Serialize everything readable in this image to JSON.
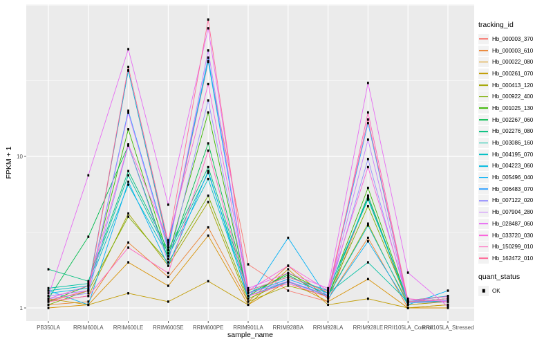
{
  "figure": {
    "panel_background": "#EBEBEB",
    "grid_color": "#FFFFFF",
    "axis_text_color": "#4D4D4D",
    "tick_color": "#333333",
    "point_color": "#000000",
    "legend_key_bg": "#F2F2F2"
  },
  "chart_data": {
    "type": "line",
    "title": "",
    "xlabel": "sample_name",
    "ylabel": "FPKM + 1",
    "y_scale": "log10",
    "ylim": [
      0.9,
      95
    ],
    "grid": "on",
    "legend_position": "right",
    "y_tick_labels": [
      {
        "value": 1,
        "label": "1"
      },
      {
        "value": 10,
        "label": "10"
      }
    ],
    "y_grid_major": [
      1,
      10,
      100
    ],
    "y_grid_minor": [
      3.1623,
      31.623
    ],
    "categories": [
      "PB350LA",
      "RRIM600LA",
      "RRIM600LE",
      "RRIM600SE",
      "RRIM600PE",
      "RRIM901LA",
      "RRIM928BA",
      "RRIM928LA",
      "RRIM928LE",
      "RRII105LA_Control",
      "RRII105LA_Stressed"
    ],
    "series": [
      {
        "name": "Hb_000003_370",
        "color": "#F8766D",
        "values": [
          1.1,
          1.3,
          37.0,
          2.5,
          42.0,
          1.94,
          1.3,
          1.1,
          5.5,
          1.05,
          1.1
        ]
      },
      {
        "name": "Hb_000003_610",
        "color": "#EA8331",
        "values": [
          1.05,
          1.1,
          2.7,
          1.6,
          3.4,
          1.1,
          1.9,
          1.15,
          2.9,
          1.0,
          1.05
        ]
      },
      {
        "name": "Hb_000022_080",
        "color": "#D89000",
        "values": [
          1.0,
          1.05,
          2.0,
          1.4,
          3.0,
          1.05,
          1.5,
          1.1,
          1.55,
          1.0,
          1.0
        ]
      },
      {
        "name": "Hb_000261_070",
        "color": "#C09B00",
        "values": [
          1.15,
          1.05,
          1.25,
          1.1,
          1.5,
          1.05,
          1.8,
          1.05,
          1.15,
          1.0,
          1.05
        ]
      },
      {
        "name": "Hb_000413_120",
        "color": "#A3A500",
        "values": [
          1.1,
          1.2,
          4.2,
          1.9,
          5.0,
          1.1,
          1.4,
          1.2,
          3.6,
          1.05,
          1.1
        ]
      },
      {
        "name": "Hb_000922_400",
        "color": "#7CAE00",
        "values": [
          1.05,
          1.3,
          4.0,
          2.0,
          5.5,
          1.15,
          1.5,
          1.2,
          4.7,
          1.1,
          1.1
        ]
      },
      {
        "name": "Hb_001025_130",
        "color": "#39B600",
        "values": [
          1.1,
          1.4,
          15.1,
          2.2,
          19.5,
          1.2,
          1.7,
          1.25,
          6.2,
          1.1,
          1.15
        ]
      },
      {
        "name": "Hb_002267_060",
        "color": "#00BB4E",
        "values": [
          1.15,
          2.95,
          11.8,
          2.1,
          12.2,
          1.25,
          1.65,
          1.2,
          5.5,
          1.1,
          1.1
        ]
      },
      {
        "name": "Hb_002276_080",
        "color": "#00BF7D",
        "values": [
          1.8,
          1.5,
          8.0,
          2.4,
          8.5,
          1.3,
          1.6,
          1.3,
          5.2,
          1.12,
          1.2
        ]
      },
      {
        "name": "Hb_003086_160",
        "color": "#00C1A3",
        "values": [
          1.35,
          1.45,
          7.5,
          2.3,
          7.8,
          1.25,
          1.55,
          1.25,
          2.0,
          1.1,
          1.15
        ]
      },
      {
        "name": "Hb_004195_070",
        "color": "#00BFC4",
        "values": [
          1.3,
          1.4,
          6.5,
          2.2,
          7.1,
          1.2,
          1.5,
          1.2,
          3.5,
          1.08,
          1.12
        ]
      },
      {
        "name": "Hb_004223_060",
        "color": "#00BAE0",
        "values": [
          1.25,
          1.35,
          36.8,
          2.6,
          42.6,
          1.3,
          1.6,
          1.3,
          5.3,
          1.1,
          1.15
        ]
      },
      {
        "name": "Hb_005496_040",
        "color": "#00B0F6",
        "values": [
          1.3,
          1.05,
          6.8,
          1.9,
          8.0,
          1.15,
          2.9,
          1.15,
          2.75,
          1.05,
          1.3
        ]
      },
      {
        "name": "Hb_006483_070",
        "color": "#35A2FF",
        "values": [
          1.2,
          1.3,
          20.0,
          2.5,
          44.9,
          1.25,
          1.55,
          1.25,
          16.6,
          1.1,
          1.2
        ]
      },
      {
        "name": "Hb_007122_020",
        "color": "#9590FF",
        "values": [
          1.15,
          1.25,
          11.8,
          2.0,
          23.4,
          1.2,
          1.48,
          1.2,
          9.6,
          1.08,
          1.1
        ]
      },
      {
        "name": "Hb_007904_280",
        "color": "#C77CFF",
        "values": [
          1.2,
          1.3,
          19.4,
          2.4,
          50.0,
          1.25,
          1.5,
          1.22,
          12.9,
          1.1,
          1.12
        ]
      },
      {
        "name": "Hb_028487_060",
        "color": "#E76BF3",
        "values": [
          1.2,
          7.5,
          51.0,
          4.8,
          70.0,
          1.35,
          1.7,
          1.35,
          30.5,
          1.71,
          1.02
        ]
      },
      {
        "name": "Hb_033720_030",
        "color": "#FA62DB",
        "values": [
          1.15,
          1.4,
          12.0,
          2.8,
          30.0,
          1.3,
          1.9,
          1.3,
          8.5,
          1.15,
          1.1
        ]
      },
      {
        "name": "Hb_150299_010",
        "color": "#FF62BC",
        "values": [
          1.1,
          1.2,
          2.5,
          1.7,
          10.9,
          1.2,
          1.45,
          1.18,
          19.5,
          1.12,
          1.19
        ]
      },
      {
        "name": "Hb_162472_010",
        "color": "#FF6A98",
        "values": [
          1.12,
          1.3,
          39.0,
          2.7,
          80.0,
          1.3,
          1.6,
          1.28,
          17.5,
          1.1,
          1.15
        ]
      }
    ],
    "legend": {
      "color_title": "tracking_id",
      "shape_title": "quant_status",
      "shape_items": [
        {
          "label": "OK"
        }
      ]
    }
  }
}
